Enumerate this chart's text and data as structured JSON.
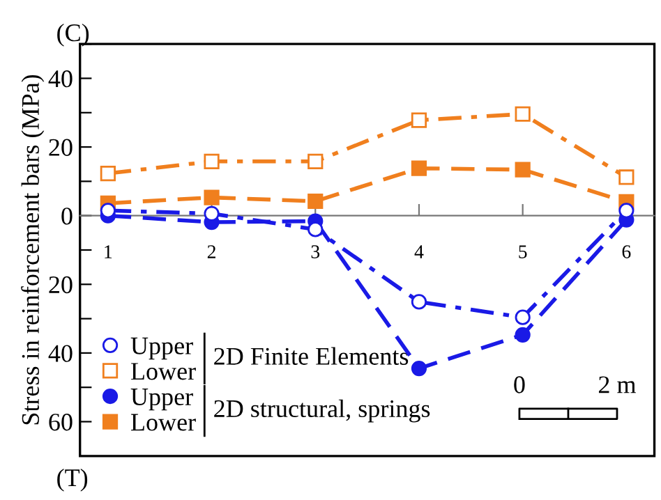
{
  "chart_data": {
    "type": "line",
    "ylabel": "Stress in reinforcement bars (MPa)",
    "categories": [
      "1",
      "2",
      "3",
      "4",
      "5",
      "6"
    ],
    "series": [
      {
        "name": "Upper",
        "color": "#1a1ae6",
        "marker": "circle",
        "line_style": "dashdot",
        "values": [
          1.5,
          0.6,
          -4.0,
          -25.1,
          -29.6,
          1.5
        ]
      },
      {
        "name": "Lower",
        "color": "#f07f1e",
        "marker": "square",
        "line_style": "dashdot",
        "values": [
          12.3,
          15.8,
          15.8,
          27.8,
          29.6,
          11.2
        ]
      },
      {
        "name": "Upper",
        "color": "#1a1ae6",
        "marker": "circle",
        "line_style": "dashed",
        "values": [
          0,
          -1.9,
          -1.6,
          -44.5,
          -34.7,
          -1.2
        ]
      },
      {
        "name": "Lower",
        "color": "#f07f1e",
        "marker": "square",
        "line_style": "dashed",
        "values": [
          3.6,
          5.3,
          4.2,
          13.8,
          13.4,
          4.0
        ]
      }
    ],
    "ylim": [
      -70,
      50
    ],
    "yticks": [
      {
        "value": 50,
        "label": null
      },
      40,
      {
        "value": 30,
        "label": null
      },
      20,
      {
        "value": 10,
        "label": null
      },
      0,
      {
        "value": -10,
        "label": null
      },
      {
        "value": -20,
        "label": "20"
      },
      {
        "value": -30,
        "label": null
      },
      {
        "value": -40,
        "label": "40"
      },
      {
        "value": -50,
        "label": null
      },
      {
        "value": -60,
        "label": "60"
      }
    ],
    "legend": "bottom left",
    "grid": false,
    "annotations": [
      "(C)",
      "(T)",
      "2D Finite Elements",
      "2D structural, springs",
      "0",
      "2 m"
    ]
  }
}
